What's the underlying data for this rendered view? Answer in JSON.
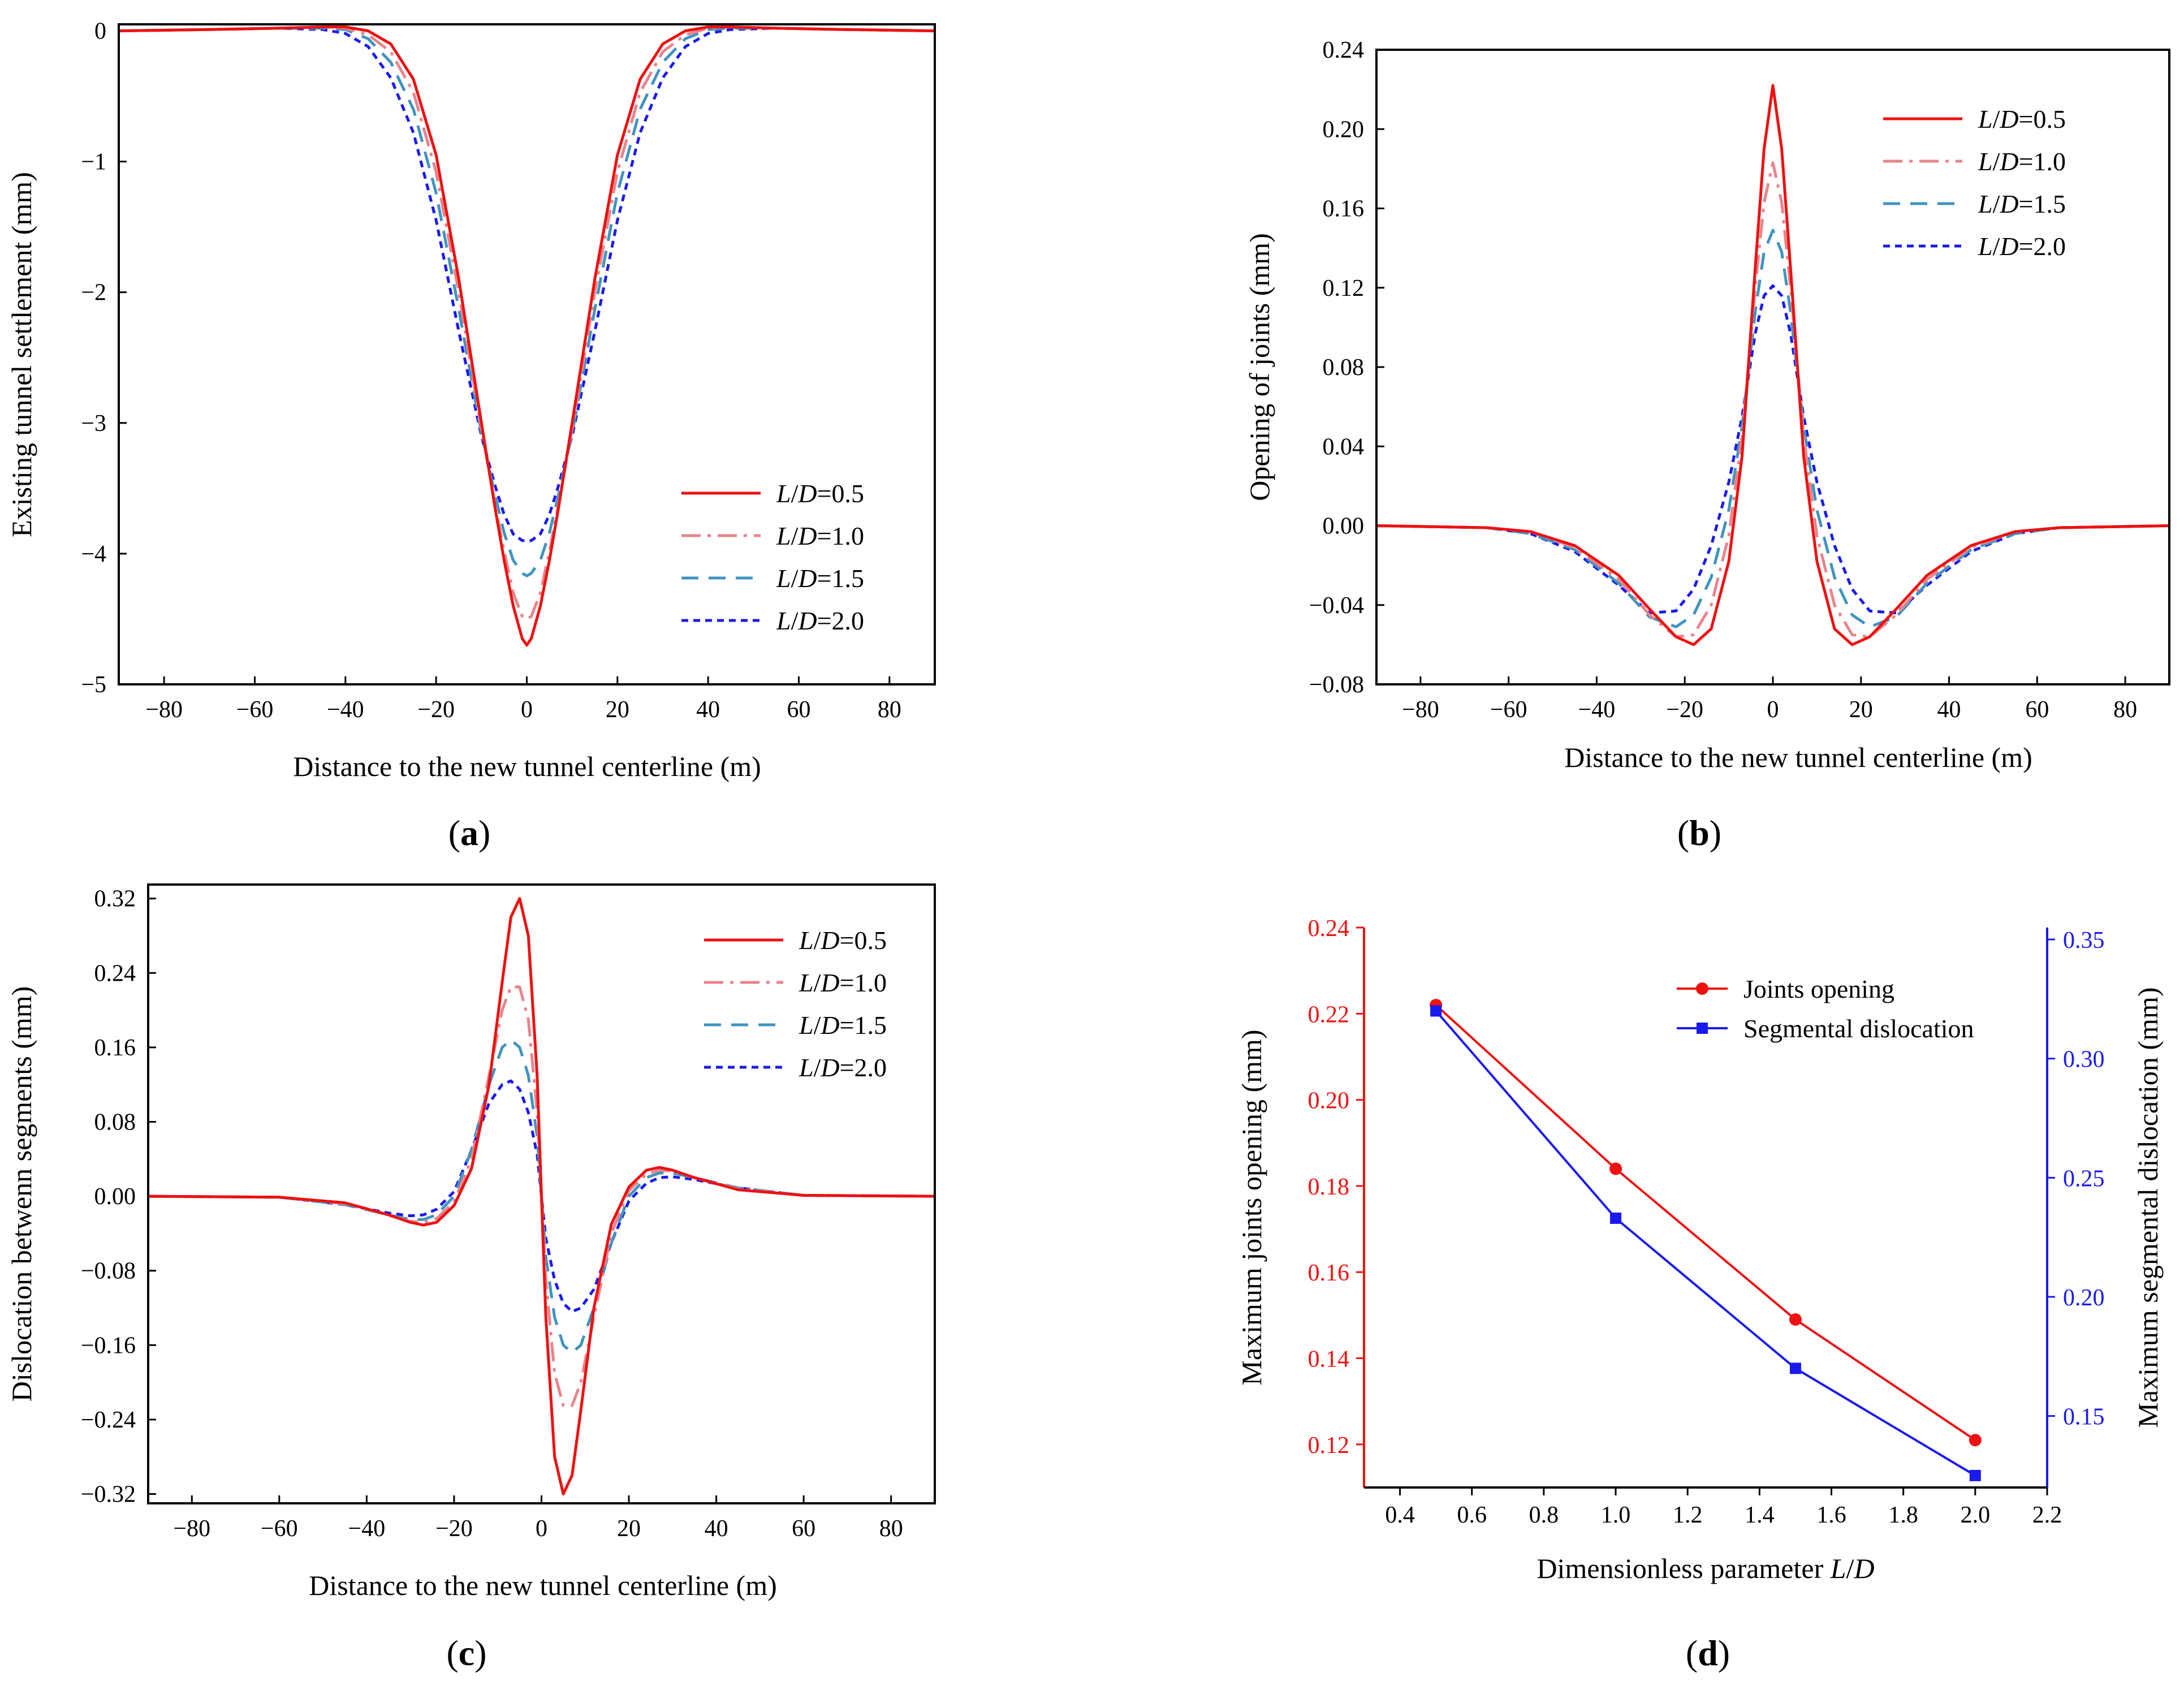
{
  "colors": {
    "red": "#ee1111",
    "pink": "#e8848c",
    "teal": "#3f94c0",
    "blue": "#1a1aee",
    "axis": "#000000"
  },
  "series_legend": [
    {
      "key": "LD05",
      "var": "L",
      "sep": "/",
      "den": "D",
      "eq": "=0.5",
      "color": "#ee1111",
      "dash": "solid"
    },
    {
      "key": "LD10",
      "var": "L",
      "sep": "/",
      "den": "D",
      "eq": "=1.0",
      "color": "#e8848c",
      "dash": "dashdot"
    },
    {
      "key": "LD15",
      "var": "L",
      "sep": "/",
      "den": "D",
      "eq": "=1.5",
      "color": "#3f94c0",
      "dash": "dash"
    },
    {
      "key": "LD20",
      "var": "L",
      "sep": "/",
      "den": "D",
      "eq": "=2.0",
      "color": "#1a1aee",
      "dash": "dot"
    }
  ],
  "chart_data": [
    {
      "id": "a",
      "type": "line",
      "panel_label": {
        "open": "(",
        "letter": "a",
        "close": ")"
      },
      "xlabel": "Distance to the new tunnel centerline (m)",
      "ylabel": "Existing tunnel settlement (mm)",
      "xlim": [
        -90,
        90
      ],
      "ylim": [
        -5,
        0.05
      ],
      "xticks": [
        -80,
        -60,
        -40,
        -20,
        0,
        20,
        40,
        60,
        80
      ],
      "yticks": [
        0,
        -1,
        -2,
        -3,
        -4,
        -5
      ],
      "ytick_labels": [
        "0",
        "−1",
        "−2",
        "−3",
        "−4",
        "−5"
      ],
      "legend_position": "lower-right",
      "series": [
        {
          "name": "L/D=0.5",
          "color": "#ee1111",
          "dash": "solid",
          "x": [
            -90,
            -70,
            -55,
            -45,
            -40,
            -35,
            -30,
            -25,
            -20,
            -15,
            -10,
            -7,
            -5,
            -3,
            -1,
            0,
            1,
            3,
            5,
            7,
            10,
            15,
            20,
            25,
            30,
            35,
            40,
            45,
            55,
            70,
            90
          ],
          "y": [
            0,
            0.01,
            0.02,
            0.03,
            0.03,
            0.0,
            -0.1,
            -0.37,
            -0.95,
            -1.9,
            -3.0,
            -3.65,
            -4.05,
            -4.4,
            -4.65,
            -4.7,
            -4.65,
            -4.4,
            -4.05,
            -3.65,
            -3.0,
            -1.9,
            -0.95,
            -0.37,
            -0.1,
            0.0,
            0.03,
            0.03,
            0.02,
            0.01,
            0
          ]
        },
        {
          "name": "L/D=1.0",
          "color": "#e8848c",
          "dash": "dashdot",
          "x": [
            -90,
            -70,
            -55,
            -45,
            -40,
            -35,
            -30,
            -25,
            -20,
            -15,
            -10,
            -7,
            -5,
            -3,
            -1,
            0,
            1,
            3,
            5,
            7,
            10,
            15,
            20,
            25,
            30,
            35,
            40,
            45,
            55,
            70,
            90
          ],
          "y": [
            0,
            0.01,
            0.02,
            0.03,
            0.02,
            -0.03,
            -0.16,
            -0.47,
            -1.08,
            -2.0,
            -3.05,
            -3.62,
            -3.98,
            -4.3,
            -4.48,
            -4.5,
            -4.48,
            -4.3,
            -3.98,
            -3.62,
            -3.05,
            -2.0,
            -1.08,
            -0.47,
            -0.16,
            -0.03,
            0.02,
            0.03,
            0.02,
            0.01,
            0
          ]
        },
        {
          "name": "L/D=1.5",
          "color": "#3f94c0",
          "dash": "dash",
          "x": [
            -90,
            -70,
            -55,
            -45,
            -40,
            -35,
            -30,
            -25,
            -20,
            -15,
            -10,
            -7,
            -5,
            -3,
            -1,
            0,
            1,
            3,
            5,
            7,
            10,
            15,
            20,
            25,
            30,
            35,
            40,
            45,
            55,
            70,
            90
          ],
          "y": [
            0,
            0.01,
            0.02,
            0.02,
            0.01,
            -0.06,
            -0.24,
            -0.6,
            -1.24,
            -2.13,
            -3.08,
            -3.55,
            -3.84,
            -4.05,
            -4.15,
            -4.17,
            -4.15,
            -4.05,
            -3.84,
            -3.55,
            -3.08,
            -2.13,
            -1.24,
            -0.6,
            -0.24,
            -0.06,
            0.01,
            0.02,
            0.02,
            0.01,
            0
          ]
        },
        {
          "name": "L/D=2.0",
          "color": "#1a1aee",
          "dash": "dot",
          "x": [
            -90,
            -70,
            -55,
            -45,
            -40,
            -35,
            -30,
            -25,
            -20,
            -15,
            -10,
            -7,
            -5,
            -3,
            -1,
            0,
            1,
            3,
            5,
            7,
            10,
            15,
            20,
            25,
            30,
            35,
            40,
            45,
            55,
            70,
            90
          ],
          "y": [
            0,
            0.01,
            0.02,
            0.01,
            -0.02,
            -0.12,
            -0.36,
            -0.78,
            -1.45,
            -2.3,
            -3.1,
            -3.48,
            -3.7,
            -3.85,
            -3.9,
            -3.9,
            -3.9,
            -3.85,
            -3.7,
            -3.48,
            -3.1,
            -2.3,
            -1.45,
            -0.78,
            -0.36,
            -0.12,
            -0.02,
            0.01,
            0.02,
            0.01,
            0
          ]
        }
      ]
    },
    {
      "id": "b",
      "type": "line",
      "panel_label": {
        "open": "(",
        "letter": "b",
        "close": ")"
      },
      "xlabel": "Distance to the new tunnel centerline (m)",
      "ylabel": "Opening of joints (mm)",
      "xlim": [
        -90,
        90
      ],
      "ylim": [
        -0.08,
        0.24
      ],
      "xticks": [
        -80,
        -60,
        -40,
        -20,
        0,
        20,
        40,
        60,
        80
      ],
      "yticks": [
        0.24,
        0.2,
        0.16,
        0.12,
        0.08,
        0.04,
        0.0,
        -0.04,
        -0.08
      ],
      "ytick_labels": [
        "0.24",
        "0.20",
        "0.16",
        "0.12",
        "0.08",
        "0.04",
        "0.00",
        "−0.04",
        "−0.08"
      ],
      "legend_position": "top-right",
      "series": [
        {
          "name": "L/D=0.5",
          "color": "#ee1111",
          "dash": "solid",
          "x": [
            -90,
            -65,
            -55,
            -45,
            -35,
            -28,
            -22,
            -18,
            -14,
            -10,
            -7,
            -4,
            -2,
            0,
            2,
            4,
            7,
            10,
            14,
            18,
            22,
            28,
            35,
            45,
            55,
            65,
            90
          ],
          "y": [
            0,
            -0.001,
            -0.003,
            -0.01,
            -0.025,
            -0.042,
            -0.056,
            -0.06,
            -0.052,
            -0.018,
            0.035,
            0.13,
            0.19,
            0.222,
            0.19,
            0.13,
            0.035,
            -0.018,
            -0.052,
            -0.06,
            -0.056,
            -0.042,
            -0.025,
            -0.01,
            -0.003,
            -0.001,
            0
          ]
        },
        {
          "name": "L/D=1.0",
          "color": "#e8848c",
          "dash": "dashdot",
          "x": [
            -90,
            -65,
            -55,
            -45,
            -35,
            -28,
            -22,
            -18,
            -14,
            -10,
            -7,
            -4,
            -2,
            0,
            2,
            4,
            7,
            10,
            14,
            18,
            22,
            28,
            35,
            45,
            55,
            65,
            90
          ],
          "y": [
            0,
            -0.001,
            -0.003,
            -0.011,
            -0.027,
            -0.045,
            -0.056,
            -0.055,
            -0.04,
            -0.005,
            0.045,
            0.12,
            0.163,
            0.183,
            0.163,
            0.12,
            0.045,
            -0.005,
            -0.04,
            -0.055,
            -0.056,
            -0.045,
            -0.027,
            -0.011,
            -0.003,
            -0.001,
            0
          ]
        },
        {
          "name": "L/D=1.5",
          "color": "#3f94c0",
          "dash": "dash",
          "x": [
            -90,
            -65,
            -55,
            -45,
            -35,
            -28,
            -22,
            -18,
            -14,
            -10,
            -7,
            -4,
            -2,
            0,
            2,
            4,
            7,
            10,
            14,
            18,
            22,
            28,
            35,
            45,
            55,
            65,
            90
          ],
          "y": [
            0,
            -0.001,
            -0.004,
            -0.012,
            -0.029,
            -0.046,
            -0.051,
            -0.045,
            -0.026,
            0.008,
            0.05,
            0.108,
            0.138,
            0.149,
            0.138,
            0.108,
            0.05,
            0.008,
            -0.026,
            -0.045,
            -0.051,
            -0.046,
            -0.029,
            -0.012,
            -0.004,
            -0.001,
            0
          ]
        },
        {
          "name": "L/D=2.0",
          "color": "#1a1aee",
          "dash": "dot",
          "x": [
            -90,
            -65,
            -55,
            -45,
            -35,
            -28,
            -22,
            -18,
            -14,
            -10,
            -7,
            -4,
            -2,
            0,
            2,
            4,
            7,
            10,
            14,
            18,
            22,
            28,
            35,
            45,
            55,
            65,
            90
          ],
          "y": [
            0,
            -0.001,
            -0.004,
            -0.013,
            -0.03,
            -0.044,
            -0.043,
            -0.032,
            -0.01,
            0.022,
            0.055,
            0.097,
            0.116,
            0.121,
            0.116,
            0.097,
            0.055,
            0.022,
            -0.01,
            -0.032,
            -0.043,
            -0.044,
            -0.03,
            -0.013,
            -0.004,
            -0.001,
            0
          ]
        }
      ]
    },
    {
      "id": "c",
      "type": "line",
      "panel_label": {
        "open": "(",
        "letter": "c",
        "close": ")"
      },
      "xlabel": "Distance to the new tunnel centerline (m)",
      "ylabel": "Dislocation betwenn segments (mm)",
      "xlim": [
        -90,
        90
      ],
      "ylim": [
        -0.33,
        0.335
      ],
      "xticks": [
        -80,
        -60,
        -40,
        -20,
        0,
        20,
        40,
        60,
        80
      ],
      "yticks": [
        0.32,
        0.24,
        0.16,
        0.08,
        0.0,
        -0.08,
        -0.16,
        -0.24,
        -0.32
      ],
      "ytick_labels": [
        "0.32",
        "0.24",
        "0.16",
        "0.08",
        "0.00",
        "−0.08",
        "−0.16",
        "−0.24",
        "−0.32"
      ],
      "legend_position": "top-right",
      "series": [
        {
          "name": "L/D=0.5",
          "color": "#ee1111",
          "dash": "solid",
          "x": [
            -90,
            -60,
            -45,
            -35,
            -30,
            -27,
            -24,
            -20,
            -16,
            -12,
            -9,
            -7,
            -5,
            -3,
            -1,
            0,
            1,
            3,
            5,
            7,
            9,
            12,
            16,
            20,
            24,
            27,
            30,
            35,
            45,
            60,
            90
          ],
          "y": [
            0,
            -0.001,
            -0.007,
            -0.02,
            -0.028,
            -0.031,
            -0.028,
            -0.01,
            0.03,
            0.12,
            0.23,
            0.3,
            0.32,
            0.28,
            0.13,
            0,
            -0.13,
            -0.28,
            -0.32,
            -0.3,
            -0.23,
            -0.12,
            -0.03,
            0.01,
            0.028,
            0.031,
            0.028,
            0.02,
            0.007,
            0.001,
            0
          ]
        },
        {
          "name": "L/D=1.0",
          "color": "#e8848c",
          "dash": "dashdot",
          "x": [
            -90,
            -60,
            -45,
            -35,
            -30,
            -27,
            -24,
            -20,
            -16,
            -12,
            -9,
            -7,
            -5,
            -3,
            -1,
            0,
            1,
            3,
            5,
            7,
            9,
            12,
            16,
            20,
            24,
            27,
            30,
            35,
            45,
            60,
            90
          ],
          "y": [
            0,
            -0.001,
            -0.008,
            -0.02,
            -0.027,
            -0.028,
            -0.024,
            -0.006,
            0.04,
            0.13,
            0.2,
            0.225,
            0.225,
            0.19,
            0.09,
            0,
            -0.09,
            -0.19,
            -0.225,
            -0.225,
            -0.2,
            -0.13,
            -0.04,
            0.006,
            0.024,
            0.028,
            0.027,
            0.02,
            0.008,
            0.001,
            0
          ]
        },
        {
          "name": "L/D=1.5",
          "color": "#3f94c0",
          "dash": "dash",
          "x": [
            -90,
            -60,
            -45,
            -35,
            -30,
            -27,
            -24,
            -20,
            -16,
            -12,
            -9,
            -7,
            -5,
            -3,
            -1,
            0,
            1,
            3,
            5,
            7,
            9,
            12,
            16,
            20,
            24,
            27,
            30,
            35,
            45,
            60,
            90
          ],
          "y": [
            0,
            -0.001,
            -0.009,
            -0.02,
            -0.025,
            -0.025,
            -0.02,
            0.0,
            0.05,
            0.12,
            0.16,
            0.168,
            0.16,
            0.13,
            0.065,
            0,
            -0.065,
            -0.13,
            -0.16,
            -0.168,
            -0.16,
            -0.12,
            -0.05,
            0.0,
            0.02,
            0.025,
            0.025,
            0.02,
            0.009,
            0.001,
            0
          ]
        },
        {
          "name": "L/D=2.0",
          "color": "#1a1aee",
          "dash": "dot",
          "x": [
            -90,
            -60,
            -45,
            -35,
            -30,
            -27,
            -24,
            -20,
            -16,
            -12,
            -9,
            -7,
            -5,
            -3,
            -1,
            0,
            1,
            3,
            5,
            7,
            9,
            12,
            16,
            20,
            24,
            27,
            30,
            35,
            45,
            60,
            90
          ],
          "y": [
            0,
            -0.001,
            -0.009,
            -0.018,
            -0.021,
            -0.02,
            -0.014,
            0.005,
            0.05,
            0.1,
            0.12,
            0.124,
            0.115,
            0.09,
            0.045,
            0,
            -0.045,
            -0.09,
            -0.115,
            -0.124,
            -0.12,
            -0.1,
            -0.05,
            -0.005,
            0.014,
            0.02,
            0.021,
            0.018,
            0.009,
            0.001,
            0
          ]
        }
      ]
    },
    {
      "id": "d",
      "type": "line",
      "dual_axis": true,
      "panel_label": {
        "open": "(",
        "letter": "d",
        "close": ")"
      },
      "xlabel_prefix": "Dimensionless parameter ",
      "xlabel_var": "L",
      "xlabel_sep": "/",
      "xlabel_den": "D",
      "ylabel_left": "Maximum joints  opening (mm)",
      "ylabel_right": "Maximum segmental dislocation (mm)",
      "xlim": [
        0.3,
        2.2
      ],
      "ylim_left": [
        0.11,
        0.24
      ],
      "ylim_right": [
        0.12,
        0.355
      ],
      "xticks": [
        0.4,
        0.6,
        0.8,
        1.0,
        1.2,
        1.4,
        1.6,
        1.8,
        2.0,
        2.2
      ],
      "xtick_labels": [
        "0.4",
        "0.6",
        "0.8",
        "1.0",
        "1.2",
        "1.4",
        "1.6",
        "1.8",
        "2.0",
        "2.2"
      ],
      "yticks_left": [
        0.24,
        0.22,
        0.2,
        0.18,
        0.16,
        0.14,
        0.12
      ],
      "ytick_labels_left": [
        "0.24",
        "0.22",
        "0.20",
        "0.18",
        "0.16",
        "0.14",
        "0.12"
      ],
      "yticks_right": [
        0.35,
        0.3,
        0.25,
        0.2,
        0.15
      ],
      "ytick_labels_right": [
        "0.35",
        "0.30",
        "0.25",
        "0.20",
        "0.15"
      ],
      "legend_position": "top-right",
      "series": [
        {
          "name": "Joints opening",
          "axis": "left",
          "marker": "circle",
          "color": "#ee1111",
          "x": [
            0.5,
            1.0,
            1.5,
            2.0
          ],
          "y": [
            0.222,
            0.184,
            0.149,
            0.121
          ]
        },
        {
          "name": "Segmental dislocation",
          "axis": "right",
          "marker": "square",
          "color": "#1a1aee",
          "x": [
            0.5,
            1.0,
            1.5,
            2.0
          ],
          "y": [
            0.32,
            0.233,
            0.17,
            0.125
          ]
        }
      ]
    }
  ]
}
